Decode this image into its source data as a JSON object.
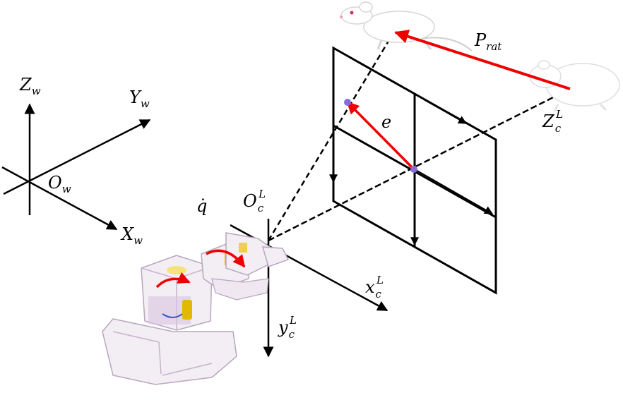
{
  "labels": {
    "zw_main": "Z",
    "zw_sub": "w",
    "yw_main": "Y",
    "yw_sub": "w",
    "xw_main": "X",
    "xw_sub": "w",
    "ow_main": "O",
    "ow_sub": "w",
    "qdot": "q̇",
    "oc_main": "O",
    "oc_sub": "c",
    "oc_sup": "L",
    "xc_main": "x",
    "xc_sub": "c",
    "xc_sup": "L",
    "yc_main": "y",
    "yc_sub": "c",
    "yc_sup": "L",
    "zc_main": "Z",
    "zc_sub": "c",
    "zc_sup": "L",
    "e": "e",
    "prat_main": "P",
    "prat_sub": "rat"
  },
  "colors": {
    "axis": "#000000",
    "vector": "#ee0000",
    "point": "#8a6ad8",
    "robot_body": "#f3eef4",
    "robot_accent": "#d9c3df",
    "rat_fur": "#ffffff",
    "rat_shade": "#dedede"
  },
  "icons": {
    "robot": "robot-arm-icon",
    "rat_near": "rat-icon",
    "rat_far": "rat-icon"
  }
}
